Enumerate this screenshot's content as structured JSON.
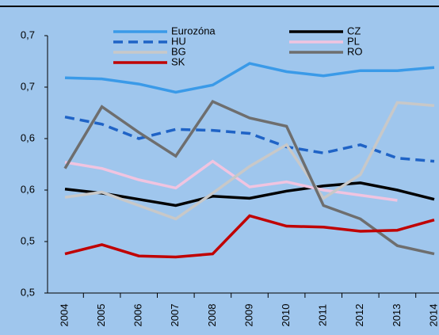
{
  "chart_data": {
    "type": "line",
    "categories": [
      "2004",
      "2005",
      "2006",
      "2007",
      "2008",
      "2009",
      "2010",
      "2011",
      "2012",
      "2013",
      "2014"
    ],
    "ylim": [
      0.5,
      0.75
    ],
    "yticks": [
      {
        "value": 0.5,
        "label": "0,5"
      },
      {
        "value": 0.55,
        "label": "0,5"
      },
      {
        "value": 0.6,
        "label": "0,6"
      },
      {
        "value": 0.65,
        "label": "0,6"
      },
      {
        "value": 0.7,
        "label": "0,7"
      },
      {
        "value": 0.75,
        "label": "0,7"
      }
    ],
    "grid": false,
    "series": [
      {
        "name": "Eurozóna",
        "color": "#3a9ae8",
        "dash": false,
        "values": [
          0.709,
          0.708,
          0.703,
          0.695,
          0.702,
          0.723,
          0.715,
          0.711,
          0.716,
          0.716,
          0.719
        ]
      },
      {
        "name": "CZ",
        "color": "#000000",
        "dash": false,
        "values": [
          0.601,
          0.597,
          0.591,
          0.585,
          0.594,
          0.592,
          0.599,
          0.604,
          0.607,
          0.6,
          0.591
        ]
      },
      {
        "name": "HU",
        "color": "#1f63c6",
        "dash": true,
        "values": [
          0.671,
          0.664,
          0.65,
          0.659,
          0.658,
          0.655,
          0.642,
          0.636,
          0.644,
          0.631,
          0.628
        ]
      },
      {
        "name": "PL",
        "color": "#f0c4e0",
        "dash": false,
        "values": [
          0.627,
          0.621,
          0.61,
          0.602,
          0.628,
          0.603,
          0.608,
          0.6,
          0.595,
          0.59,
          null
        ]
      },
      {
        "name": "BG",
        "color": "#c8c8c8",
        "dash": false,
        "values": [
          0.593,
          0.598,
          0.585,
          0.572,
          0.597,
          0.623,
          0.644,
          0.592,
          0.615,
          0.685,
          0.682
        ]
      },
      {
        "name": "RO",
        "color": "#6e6e6e",
        "dash": false,
        "values": [
          0.621,
          0.681,
          0.656,
          0.633,
          0.686,
          0.67,
          0.662,
          0.585,
          0.572,
          0.546,
          0.538
        ]
      },
      {
        "name": "SK",
        "color": "#c00000",
        "dash": false,
        "values": [
          0.538,
          0.547,
          0.536,
          0.535,
          0.538,
          0.575,
          0.565,
          0.564,
          0.56,
          0.561,
          0.571
        ]
      }
    ]
  }
}
